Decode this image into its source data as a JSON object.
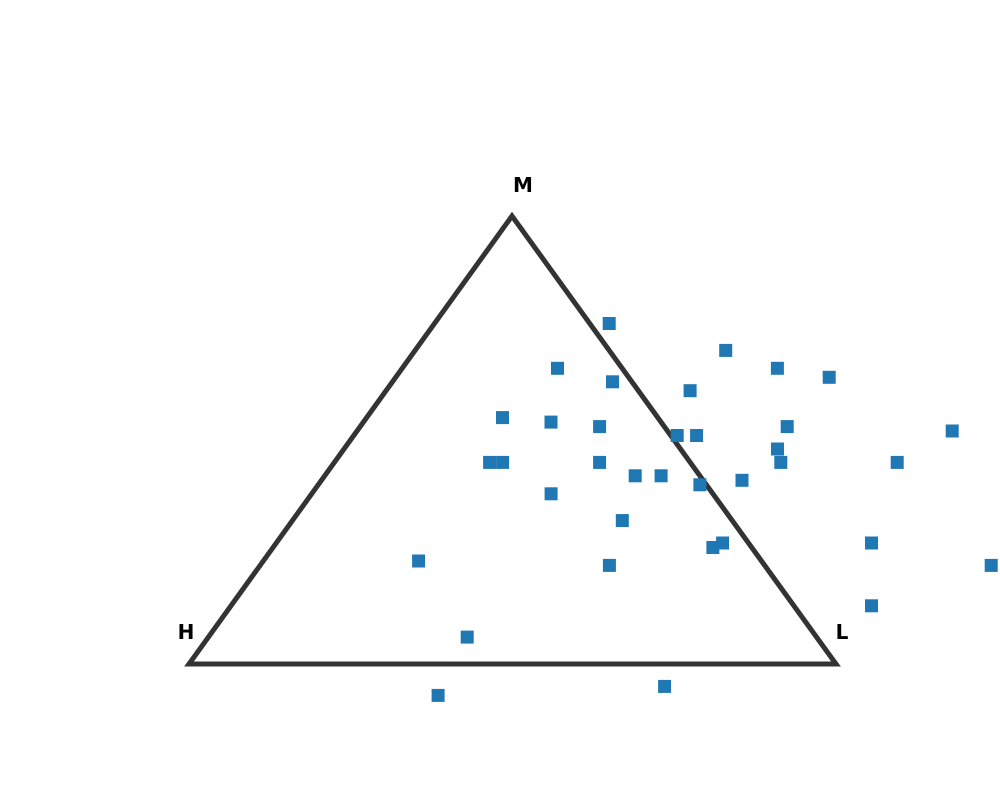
{
  "chart_data": {
    "type": "scatter",
    "subtype": "ternary",
    "title": "",
    "vertex_labels": {
      "top": "M",
      "left": "H",
      "right": "L"
    },
    "marker": "square",
    "colors": {
      "points": "#1f77b4",
      "outline": "#333333"
    },
    "grid": false,
    "legend": "none",
    "series": [
      {
        "name": "",
        "points": [
          {
            "H": -0.03,
            "M": 0.76,
            "L": 0.27
          },
          {
            "H": -0.18,
            "M": 0.7,
            "L": 0.48
          },
          {
            "H": -0.24,
            "M": 0.66,
            "L": 0.58
          },
          {
            "H": -0.31,
            "M": 0.64,
            "L": 0.67
          },
          {
            "H": 0.1,
            "M": 0.66,
            "L": 0.24
          },
          {
            "H": 0.03,
            "M": 0.63,
            "L": 0.34
          },
          {
            "H": -0.08,
            "M": 0.61,
            "L": 0.47
          },
          {
            "H": 0.24,
            "M": 0.55,
            "L": 0.21
          },
          {
            "H": 0.17,
            "M": 0.54,
            "L": 0.29
          },
          {
            "H": 0.1,
            "M": 0.53,
            "L": 0.37
          },
          {
            "H": -0.01,
            "M": 0.51,
            "L": 0.5
          },
          {
            "H": -0.04,
            "M": 0.51,
            "L": 0.53
          },
          {
            "H": -0.19,
            "M": 0.53,
            "L": 0.66
          },
          {
            "H": -0.15,
            "M": 0.48,
            "L": 0.67
          },
          {
            "H": -0.14,
            "M": 0.45,
            "L": 0.69
          },
          {
            "H": -0.32,
            "M": 0.45,
            "L": 0.87
          },
          {
            "H": -0.44,
            "M": 0.52,
            "L": 0.92
          },
          {
            "H": 0.31,
            "M": 0.45,
            "L": 0.24
          },
          {
            "H": 0.29,
            "M": 0.45,
            "L": 0.26
          },
          {
            "H": 0.14,
            "M": 0.45,
            "L": 0.41
          },
          {
            "H": 0.1,
            "M": 0.42,
            "L": 0.48
          },
          {
            "H": 0.06,
            "M": 0.42,
            "L": 0.52
          },
          {
            "H": 0.01,
            "M": 0.4,
            "L": 0.59
          },
          {
            "H": -0.06,
            "M": 0.41,
            "L": 0.65
          },
          {
            "H": 0.25,
            "M": 0.38,
            "L": 0.37
          },
          {
            "H": 0.17,
            "M": 0.32,
            "L": 0.51
          },
          {
            "H": 0.06,
            "M": 0.26,
            "L": 0.68
          },
          {
            "H": 0.04,
            "M": 0.27,
            "L": 0.69
          },
          {
            "H": 0.53,
            "M": 0.23,
            "L": 0.24
          },
          {
            "H": 0.24,
            "M": 0.22,
            "L": 0.54
          },
          {
            "H": -0.19,
            "M": 0.27,
            "L": 0.92
          },
          {
            "H": -0.35,
            "M": 0.22,
            "L": 1.13
          },
          {
            "H": -0.12,
            "M": 0.13,
            "L": 0.99
          },
          {
            "H": 0.54,
            "M": 0.06,
            "L": 0.4
          },
          {
            "H": 0.29,
            "M": -0.05,
            "L": 0.76
          },
          {
            "H": 0.65,
            "M": -0.07,
            "L": 0.42
          }
        ]
      }
    ]
  }
}
